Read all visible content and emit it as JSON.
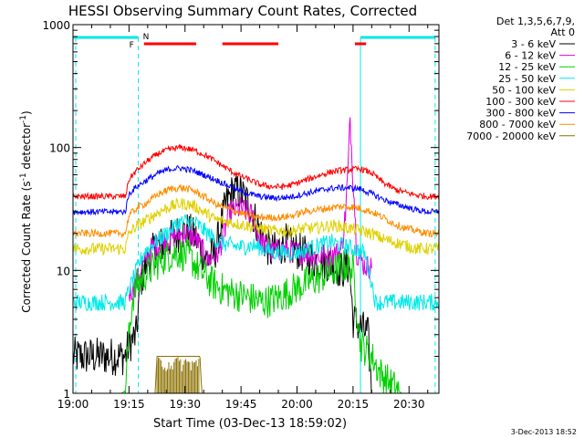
{
  "chart_data": {
    "type": "line",
    "title": "HESSI Observing Summary Count Rates, Corrected",
    "xlabel": "Start Time (03-Dec-13 18:59:02)",
    "ylabel_main": "Corrected Count Rate (s",
    "ylabel_sup1": "-1",
    "ylabel_mid": " detector",
    "ylabel_sup2": "-1",
    "ylabel_end": ")",
    "x_unit": "minutes since 19:00 UT",
    "xlim": [
      0,
      98
    ],
    "ylim": [
      1,
      1000
    ],
    "yscale": "log",
    "x_ticks": [
      {
        "value": 0,
        "label": "19:00"
      },
      {
        "value": 15,
        "label": "19:15"
      },
      {
        "value": 30,
        "label": "19:30"
      },
      {
        "value": 45,
        "label": "19:45"
      },
      {
        "value": 60,
        "label": "20:00"
      },
      {
        "value": 75,
        "label": "20:15"
      },
      {
        "value": 90,
        "label": "20:30"
      }
    ],
    "y_ticks": [
      {
        "value": 1,
        "label": "1"
      },
      {
        "value": 10,
        "label": "10"
      },
      {
        "value": 100,
        "label": "100"
      },
      {
        "value": 1000,
        "label": "1000"
      }
    ],
    "legend_header": [
      "Det 1,3,5,6,7,9,",
      "Att 0"
    ],
    "legend_position": "right",
    "series": [
      {
        "name": "3 - 6 keV",
        "color": "#000000",
        "points": [
          [
            0,
            2.0
          ],
          [
            14,
            2.0
          ],
          [
            15,
            2.5
          ],
          [
            17,
            3.0
          ],
          [
            18,
            8
          ],
          [
            20,
            12
          ],
          [
            22,
            15
          ],
          [
            25,
            17
          ],
          [
            28,
            20
          ],
          [
            31,
            21
          ],
          [
            33,
            18
          ],
          [
            36,
            12
          ],
          [
            38,
            14
          ],
          [
            41,
            35
          ],
          [
            43,
            45
          ],
          [
            45,
            43
          ],
          [
            47,
            35
          ],
          [
            49,
            25
          ],
          [
            51,
            18
          ],
          [
            53,
            14
          ],
          [
            55,
            15
          ],
          [
            57,
            17
          ],
          [
            59,
            15
          ],
          [
            61,
            14
          ],
          [
            63,
            13
          ],
          [
            65,
            12
          ],
          [
            67,
            12
          ],
          [
            70,
            11
          ],
          [
            72,
            10
          ],
          [
            74,
            11
          ],
          [
            75,
            4
          ],
          [
            79,
            3
          ],
          [
            80,
            1.0
          ],
          [
            98,
            1.0
          ]
        ]
      },
      {
        "name": "6 - 12 keV",
        "color": "#e000e0",
        "points": [
          [
            15,
            6.5
          ],
          [
            17,
            8
          ],
          [
            19,
            11
          ],
          [
            21,
            15
          ],
          [
            24,
            17
          ],
          [
            27,
            19
          ],
          [
            30,
            20
          ],
          [
            33,
            18
          ],
          [
            36,
            12
          ],
          [
            39,
            14
          ],
          [
            42,
            30
          ],
          [
            45,
            32
          ],
          [
            48,
            28
          ],
          [
            50,
            18
          ],
          [
            53,
            14
          ],
          [
            56,
            15
          ],
          [
            59,
            14
          ],
          [
            62,
            14
          ],
          [
            65,
            13
          ],
          [
            68,
            13
          ],
          [
            71,
            14
          ],
          [
            72,
            15
          ],
          [
            73,
            30
          ],
          [
            73.8,
            80
          ],
          [
            74.2,
            180
          ],
          [
            74.7,
            85
          ],
          [
            75.5,
            30
          ],
          [
            76,
            14
          ],
          [
            78,
            11
          ],
          [
            80,
            10.5
          ]
        ]
      },
      {
        "name": "12 - 25 keV",
        "color": "#00d000",
        "points": [
          [
            0,
            1.0
          ],
          [
            13,
            1.0
          ],
          [
            14,
            1.05
          ],
          [
            15,
            3
          ],
          [
            16,
            6
          ],
          [
            17,
            7.5
          ],
          [
            19,
            9
          ],
          [
            22,
            11
          ],
          [
            25,
            13
          ],
          [
            28,
            14
          ],
          [
            31,
            13
          ],
          [
            34,
            10
          ],
          [
            37,
            8
          ],
          [
            40,
            7
          ],
          [
            43,
            6.5
          ],
          [
            47,
            6
          ],
          [
            51,
            5.5
          ],
          [
            55,
            6
          ],
          [
            59,
            7
          ],
          [
            63,
            8
          ],
          [
            67,
            9
          ],
          [
            70,
            10
          ],
          [
            73,
            11
          ],
          [
            75,
            10
          ],
          [
            76,
            5
          ],
          [
            77,
            2.5
          ],
          [
            80,
            2
          ],
          [
            82,
            1.5
          ],
          [
            85,
            1.2
          ],
          [
            88,
            1.0
          ],
          [
            98,
            1.0
          ]
        ]
      },
      {
        "name": "25 - 50 keV",
        "color": "#00e8e8",
        "points": [
          [
            0,
            5.5
          ],
          [
            14,
            5.5
          ],
          [
            15,
            7
          ],
          [
            17,
            10
          ],
          [
            19,
            14
          ],
          [
            22,
            17
          ],
          [
            25,
            20
          ],
          [
            28,
            24
          ],
          [
            30,
            25
          ],
          [
            33,
            24
          ],
          [
            36,
            20
          ],
          [
            39,
            17
          ],
          [
            42,
            16
          ],
          [
            45,
            15.5
          ],
          [
            48,
            16
          ],
          [
            51,
            15
          ],
          [
            54,
            14
          ],
          [
            57,
            14
          ],
          [
            60,
            14
          ],
          [
            63,
            15
          ],
          [
            66,
            16
          ],
          [
            69,
            17
          ],
          [
            72,
            16
          ],
          [
            75,
            15
          ],
          [
            78,
            14
          ],
          [
            80,
            8
          ],
          [
            81,
            5.5
          ],
          [
            98,
            5.5
          ]
        ]
      },
      {
        "name": "50 - 100 keV",
        "color": "#e0d000",
        "points": [
          [
            0,
            15
          ],
          [
            14,
            15
          ],
          [
            15,
            20
          ],
          [
            17,
            23
          ],
          [
            20,
            26
          ],
          [
            23,
            30
          ],
          [
            26,
            33
          ],
          [
            29,
            35
          ],
          [
            32,
            34
          ],
          [
            35,
            30
          ],
          [
            38,
            26
          ],
          [
            41,
            25
          ],
          [
            44,
            24
          ],
          [
            47,
            23
          ],
          [
            50,
            22
          ],
          [
            53,
            21
          ],
          [
            56,
            21
          ],
          [
            59,
            21
          ],
          [
            62,
            22
          ],
          [
            65,
            22
          ],
          [
            68,
            23
          ],
          [
            71,
            23
          ],
          [
            74,
            22
          ],
          [
            77,
            21
          ],
          [
            80,
            20
          ],
          [
            83,
            18
          ],
          [
            86,
            17
          ],
          [
            89,
            16
          ],
          [
            92,
            15
          ],
          [
            98,
            15
          ]
        ]
      },
      {
        "name": "100 - 300 keV",
        "color": "#ff0000",
        "points": [
          [
            0,
            40
          ],
          [
            14,
            40
          ],
          [
            15,
            55
          ],
          [
            17,
            65
          ],
          [
            20,
            78
          ],
          [
            23,
            90
          ],
          [
            26,
            97
          ],
          [
            29,
            100
          ],
          [
            32,
            96
          ],
          [
            35,
            88
          ],
          [
            38,
            78
          ],
          [
            41,
            68
          ],
          [
            44,
            60
          ],
          [
            47,
            55
          ],
          [
            50,
            50
          ],
          [
            53,
            48
          ],
          [
            56,
            48
          ],
          [
            59,
            50
          ],
          [
            62,
            54
          ],
          [
            65,
            58
          ],
          [
            68,
            62
          ],
          [
            71,
            65
          ],
          [
            74,
            66
          ],
          [
            77,
            67
          ],
          [
            80,
            62
          ],
          [
            83,
            52
          ],
          [
            86,
            46
          ],
          [
            89,
            43
          ],
          [
            92,
            41
          ],
          [
            95,
            40
          ],
          [
            98,
            40
          ]
        ]
      },
      {
        "name": "300 - 800 keV",
        "color": "#0000ff",
        "points": [
          [
            0,
            30
          ],
          [
            14,
            30
          ],
          [
            15,
            42
          ],
          [
            17,
            48
          ],
          [
            20,
            55
          ],
          [
            23,
            62
          ],
          [
            26,
            67
          ],
          [
            29,
            68
          ],
          [
            32,
            65
          ],
          [
            35,
            60
          ],
          [
            38,
            55
          ],
          [
            41,
            50
          ],
          [
            44,
            45
          ],
          [
            47,
            42
          ],
          [
            50,
            40
          ],
          [
            53,
            39
          ],
          [
            56,
            39
          ],
          [
            59,
            40
          ],
          [
            62,
            42
          ],
          [
            65,
            44
          ],
          [
            68,
            46
          ],
          [
            71,
            47
          ],
          [
            74,
            47
          ],
          [
            77,
            46
          ],
          [
            80,
            42
          ],
          [
            83,
            38
          ],
          [
            86,
            35
          ],
          [
            89,
            33
          ],
          [
            92,
            31
          ],
          [
            95,
            30
          ],
          [
            98,
            30
          ]
        ]
      },
      {
        "name": "800 - 7000 keV",
        "color": "#ff8c00",
        "points": [
          [
            0,
            20
          ],
          [
            14,
            20
          ],
          [
            15,
            28
          ],
          [
            17,
            32
          ],
          [
            20,
            36
          ],
          [
            23,
            42
          ],
          [
            26,
            46
          ],
          [
            29,
            47
          ],
          [
            32,
            45
          ],
          [
            35,
            40
          ],
          [
            38,
            35
          ],
          [
            41,
            32
          ],
          [
            44,
            30
          ],
          [
            47,
            28
          ],
          [
            50,
            27
          ],
          [
            53,
            27
          ],
          [
            56,
            27
          ],
          [
            59,
            28
          ],
          [
            62,
            30
          ],
          [
            65,
            31
          ],
          [
            68,
            32
          ],
          [
            71,
            33
          ],
          [
            74,
            33
          ],
          [
            77,
            32
          ],
          [
            80,
            30
          ],
          [
            83,
            27
          ],
          [
            86,
            24
          ],
          [
            89,
            22
          ],
          [
            92,
            21
          ],
          [
            95,
            20
          ],
          [
            98,
            20
          ]
        ]
      },
      {
        "name": "7000 - 20000 keV",
        "color": "#8b7000",
        "points": [
          [
            0,
            1.0
          ],
          [
            22,
            1.0
          ],
          [
            22.5,
            2.0
          ],
          [
            34,
            2.0
          ],
          [
            34.5,
            1.0
          ],
          [
            98,
            1.0
          ]
        ]
      }
    ],
    "attenuator_state_segments": [
      {
        "from": 0,
        "to": 17.5
      },
      {
        "from": 77,
        "to": 97
      }
    ],
    "state_labels": [
      "F",
      "N"
    ],
    "flare_flag_segments": [
      {
        "from": 19,
        "to": 33
      },
      {
        "from": 40,
        "to": 55
      },
      {
        "from": 75.5,
        "to": 78.5
      }
    ],
    "boundary_markers": [
      17.5,
      77
    ],
    "background_markers": [
      0,
      97
    ],
    "timestamp": "3-Dec-2013 18:52",
    "colors": {
      "attenuator_state": "#00e8e8",
      "flare_flag": "#ff0000",
      "label_f": "#ff0000",
      "label_n": "#00e8e8"
    }
  }
}
